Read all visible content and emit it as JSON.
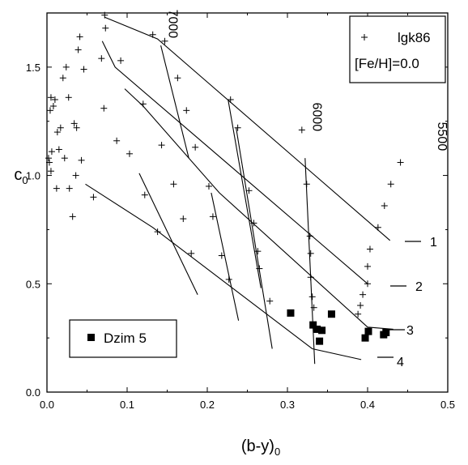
{
  "chart_data": {
    "type": "scatter",
    "xlabel": "(b-y)",
    "xlabel_sub": "0",
    "ylabel": "c",
    "ylabel_sub": "0",
    "xlim": [
      0.0,
      0.5
    ],
    "ylim": [
      0.0,
      1.75
    ],
    "x_ticks": [
      0.0,
      0.1,
      0.2,
      0.3,
      0.4,
      0.5
    ],
    "x_tick_labels": [
      "0.0",
      "0.1",
      "0.2",
      "0.3",
      "0.4",
      "0.5"
    ],
    "y_ticks": [
      0.0,
      0.5,
      1.0,
      1.5
    ],
    "y_tick_labels": [
      "0.0",
      "0.5",
      "1.0",
      "1.5"
    ],
    "grid": false,
    "legend_top": {
      "marker": "plus",
      "label": "lgk86",
      "note": "[Fe/H]=0.0",
      "placement": "top-right"
    },
    "legend_bottom": {
      "marker": "square",
      "label": "Dzim 5",
      "placement": "bottom-left"
    },
    "temperature_labels": [
      {
        "text": "7000",
        "x": 0.152,
        "y": 1.7
      },
      {
        "text": "6000",
        "x": 0.332,
        "y": 1.27
      },
      {
        "text": "5500",
        "x": 0.488,
        "y": 1.18
      }
    ],
    "line_labels": [
      "1",
      "2",
      "3",
      "4"
    ],
    "series": [
      {
        "name": "lgk86",
        "marker": "plus",
        "points": [
          [
            0.002,
            1.08
          ],
          [
            0.003,
            1.06
          ],
          [
            0.004,
            1.3
          ],
          [
            0.005,
            1.36
          ],
          [
            0.005,
            1.02
          ],
          [
            0.006,
            1.11
          ],
          [
            0.008,
            1.32
          ],
          [
            0.01,
            1.35
          ],
          [
            0.012,
            0.94
          ],
          [
            0.013,
            1.2
          ],
          [
            0.015,
            1.12
          ],
          [
            0.017,
            1.22
          ],
          [
            0.02,
            1.45
          ],
          [
            0.022,
            1.08
          ],
          [
            0.024,
            1.5
          ],
          [
            0.027,
            1.36
          ],
          [
            0.028,
            0.94
          ],
          [
            0.032,
            0.81
          ],
          [
            0.034,
            1.24
          ],
          [
            0.036,
            1.0
          ],
          [
            0.037,
            1.22
          ],
          [
            0.039,
            1.58
          ],
          [
            0.041,
            1.64
          ],
          [
            0.043,
            1.07
          ],
          [
            0.046,
            1.49
          ],
          [
            0.058,
            0.9
          ],
          [
            0.068,
            1.54
          ],
          [
            0.071,
            1.31
          ],
          [
            0.072,
            1.74
          ],
          [
            0.073,
            1.68
          ],
          [
            0.087,
            1.16
          ],
          [
            0.092,
            1.53
          ],
          [
            0.103,
            1.1
          ],
          [
            0.12,
            1.33
          ],
          [
            0.122,
            0.91
          ],
          [
            0.132,
            1.65
          ],
          [
            0.138,
            0.74
          ],
          [
            0.143,
            1.14
          ],
          [
            0.147,
            1.62
          ],
          [
            0.158,
            0.96
          ],
          [
            0.163,
            1.45
          ],
          [
            0.17,
            0.8
          ],
          [
            0.174,
            1.3
          ],
          [
            0.18,
            0.64
          ],
          [
            0.185,
            1.13
          ],
          [
            0.202,
            0.95
          ],
          [
            0.207,
            0.81
          ],
          [
            0.218,
            0.63
          ],
          [
            0.227,
            0.52
          ],
          [
            0.229,
            1.35
          ],
          [
            0.238,
            1.22
          ],
          [
            0.252,
            0.93
          ],
          [
            0.258,
            0.78
          ],
          [
            0.263,
            0.65
          ],
          [
            0.265,
            0.57
          ],
          [
            0.278,
            0.42
          ],
          [
            0.318,
            1.21
          ],
          [
            0.324,
            0.96
          ],
          [
            0.328,
            0.72
          ],
          [
            0.329,
            0.64
          ],
          [
            0.329,
            0.53
          ],
          [
            0.331,
            0.44
          ],
          [
            0.333,
            0.39
          ],
          [
            0.388,
            0.36
          ],
          [
            0.391,
            0.4
          ],
          [
            0.394,
            0.45
          ],
          [
            0.4,
            0.5
          ],
          [
            0.4,
            0.58
          ],
          [
            0.403,
            0.66
          ],
          [
            0.413,
            0.76
          ],
          [
            0.421,
            0.86
          ],
          [
            0.429,
            0.96
          ],
          [
            0.441,
            1.06
          ]
        ]
      },
      {
        "name": "Dzim 5",
        "marker": "square",
        "points": [
          [
            0.304,
            0.365
          ],
          [
            0.332,
            0.31
          ],
          [
            0.337,
            0.29
          ],
          [
            0.34,
            0.235
          ],
          [
            0.343,
            0.285
          ],
          [
            0.355,
            0.36
          ],
          [
            0.397,
            0.25
          ],
          [
            0.401,
            0.28
          ],
          [
            0.42,
            0.265
          ],
          [
            0.423,
            0.275
          ]
        ]
      }
    ],
    "curves": [
      {
        "name": "1",
        "points": [
          [
            0.072,
            1.73
          ],
          [
            0.138,
            1.63
          ],
          [
            0.428,
            0.7
          ]
        ]
      },
      {
        "name": "2",
        "points": [
          [
            0.069,
            1.62
          ],
          [
            0.085,
            1.5
          ],
          [
            0.4,
            0.5
          ]
        ]
      },
      {
        "name": "3",
        "points": [
          [
            0.097,
            1.4
          ],
          [
            0.12,
            1.32
          ],
          [
            0.215,
            0.92
          ],
          [
            0.4,
            0.3
          ],
          [
            0.432,
            0.29
          ]
        ]
      },
      {
        "name": "4",
        "points": [
          [
            0.048,
            0.96
          ],
          [
            0.132,
            0.76
          ],
          [
            0.331,
            0.2
          ],
          [
            0.392,
            0.15
          ]
        ]
      },
      {
        "name": "iso-a",
        "points": [
          [
            0.115,
            1.01
          ],
          [
            0.188,
            0.45
          ]
        ]
      },
      {
        "name": "iso-b",
        "points": [
          [
            0.142,
            1.6
          ],
          [
            0.177,
            1.08
          ]
        ]
      },
      {
        "name": "iso-c",
        "points": [
          [
            0.205,
            0.92
          ],
          [
            0.239,
            0.33
          ]
        ]
      },
      {
        "name": "iso-d",
        "points": [
          [
            0.236,
            1.22
          ],
          [
            0.281,
            0.2
          ]
        ]
      },
      {
        "name": "iso-e",
        "points": [
          [
            0.226,
            1.35
          ],
          [
            0.267,
            0.48
          ]
        ]
      },
      {
        "name": "iso-f",
        "points": [
          [
            0.322,
            1.08
          ],
          [
            0.334,
            0.13
          ]
        ]
      }
    ]
  }
}
